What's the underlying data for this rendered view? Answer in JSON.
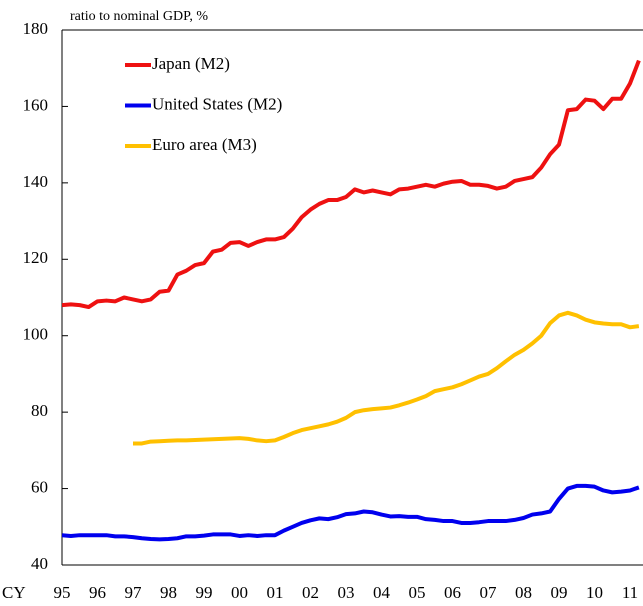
{
  "chart_data": {
    "type": "line",
    "subtitle": "ratio to nominal GDP, %",
    "x_label": "CY",
    "categories": [
      "95",
      null,
      null,
      null,
      "96",
      null,
      null,
      null,
      "97",
      null,
      null,
      null,
      "98",
      null,
      null,
      null,
      "99",
      null,
      null,
      null,
      "00",
      null,
      null,
      null,
      "01",
      null,
      null,
      null,
      "02",
      null,
      null,
      null,
      "03",
      null,
      null,
      null,
      "04",
      null,
      null,
      null,
      "05",
      null,
      null,
      null,
      "06",
      null,
      null,
      null,
      "07",
      null,
      null,
      null,
      "08",
      null,
      null,
      null,
      "09",
      null,
      null,
      null,
      "10",
      null,
      null,
      null,
      "11",
      null
    ],
    "ylim": [
      40,
      180
    ],
    "yticks": [
      40,
      60,
      80,
      100,
      120,
      140,
      160,
      180
    ],
    "series": [
      {
        "name": "Japan (M2)",
        "color": "#ee1111",
        "values": [
          108,
          108.2,
          108,
          107.5,
          109,
          109.2,
          109,
          110,
          109.5,
          109,
          109.5,
          111.5,
          111.8,
          116,
          117,
          118.5,
          119,
          122,
          122.5,
          124.3,
          124.5,
          123.5,
          124.5,
          125.2,
          125.2,
          125.8,
          128,
          131,
          133,
          134.5,
          135.5,
          135.5,
          136.3,
          138.3,
          137.5,
          138,
          137.5,
          137,
          138.3,
          138.5,
          139,
          139.5,
          139,
          139.8,
          140.3,
          140.5,
          139.5,
          139.5,
          139.2,
          138.5,
          139,
          140.5,
          141,
          141.5,
          144,
          147.5,
          150,
          159,
          159.3,
          161.8,
          161.5,
          159.3,
          162,
          162,
          166,
          172
        ]
      },
      {
        "name": "United States (M2)",
        "color": "#0000ee",
        "values": [
          47.8,
          47.6,
          47.8,
          47.8,
          47.8,
          47.8,
          47.5,
          47.5,
          47.3,
          47,
          46.8,
          46.7,
          46.8,
          47,
          47.5,
          47.5,
          47.7,
          48,
          48,
          48,
          47.6,
          47.8,
          47.6,
          47.8,
          47.8,
          49,
          50,
          51,
          51.7,
          52.2,
          52,
          52.5,
          53.3,
          53.5,
          54,
          53.8,
          53.2,
          52.7,
          52.8,
          52.6,
          52.6,
          52,
          51.8,
          51.5,
          51.5,
          51,
          51,
          51.2,
          51.5,
          51.5,
          51.5,
          51.8,
          52.3,
          53.2,
          53.5,
          54,
          57.3,
          60,
          60.7,
          60.7,
          60.5,
          59.5,
          59,
          59.2,
          59.5,
          60.3
        ]
      },
      {
        "name": "Euro area (M3)",
        "color": "#ffc000",
        "values": [
          null,
          null,
          null,
          null,
          null,
          null,
          null,
          null,
          71.8,
          71.8,
          72.3,
          72.4,
          72.5,
          72.6,
          72.6,
          72.7,
          72.8,
          72.9,
          73,
          73.1,
          73.2,
          73,
          72.6,
          72.4,
          72.6,
          73.5,
          74.5,
          75.3,
          75.8,
          76.3,
          76.8,
          77.5,
          78.5,
          80,
          80.5,
          80.8,
          81,
          81.2,
          81.8,
          82.5,
          83.3,
          84.2,
          85.5,
          86,
          86.5,
          87.3,
          88.3,
          89.3,
          90,
          91.5,
          93.3,
          95,
          96.3,
          98,
          100,
          103.3,
          105.3,
          106,
          105.3,
          104.2,
          103.5,
          103.2,
          103,
          103,
          102.2,
          102.5
        ]
      }
    ]
  }
}
